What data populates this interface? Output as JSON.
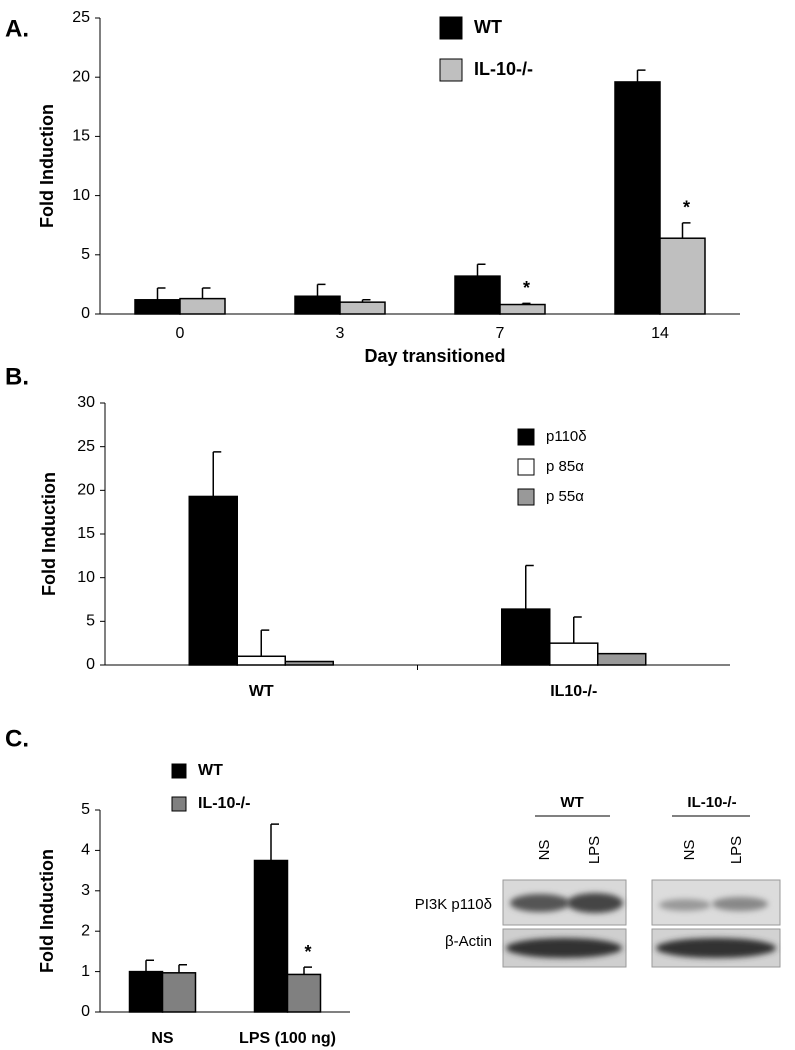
{
  "chart_data": [
    {
      "type": "bar",
      "panel": "A.",
      "y_label": "Fold Induction",
      "x_label": "Day transitioned",
      "categories": [
        "0",
        "3",
        "7",
        "14"
      ],
      "series": [
        {
          "name": "WT",
          "color": "#000000",
          "values": [
            1.2,
            1.5,
            3.2,
            19.6
          ],
          "errors": [
            1.0,
            1.0,
            1.0,
            1.0
          ],
          "markers": [
            null,
            null,
            null,
            null
          ]
        },
        {
          "name": "IL-10-/-",
          "color": "#bfbfbf",
          "values": [
            1.3,
            1.0,
            0.8,
            6.4
          ],
          "errors": [
            0.9,
            0.2,
            0.1,
            1.3
          ],
          "markers": [
            null,
            null,
            "*",
            "*"
          ]
        }
      ],
      "ylim": [
        0,
        25
      ],
      "yticks": [
        0,
        5,
        10,
        15,
        20,
        25
      ],
      "grid": false
    },
    {
      "type": "bar",
      "panel": "B.",
      "y_label": "Fold Induction",
      "categories": [
        "WT",
        "IL10-/-"
      ],
      "series": [
        {
          "name": "p110δ",
          "color": "#000000",
          "values": [
            19.3,
            6.4
          ],
          "errors": [
            5.1,
            5.0
          ]
        },
        {
          "name": "p 85α",
          "color": "#ffffff",
          "values": [
            1.0,
            2.5
          ],
          "errors": [
            3.0,
            3.0
          ]
        },
        {
          "name": "p 55α",
          "color": "#999999",
          "values": [
            0.4,
            1.3
          ],
          "errors": [
            null,
            null
          ]
        }
      ],
      "ylim": [
        0,
        30
      ],
      "yticks": [
        0,
        5,
        10,
        15,
        20,
        25,
        30
      ],
      "grid": false
    },
    {
      "type": "bar",
      "panel": "C.",
      "y_label": "Fold Induction",
      "categories": [
        "NS",
        "LPS (100 ng)"
      ],
      "series": [
        {
          "name": "WT",
          "color": "#000000",
          "values": [
            1.0,
            3.75
          ],
          "errors": [
            0.28,
            0.9
          ],
          "markers": [
            null,
            null
          ]
        },
        {
          "name": "IL-10-/-",
          "color": "#808080",
          "values": [
            0.97,
            0.93
          ],
          "errors": [
            0.2,
            0.18
          ],
          "markers": [
            null,
            "*"
          ]
        }
      ],
      "ylim": [
        0,
        5
      ],
      "yticks": [
        0,
        1,
        2,
        3,
        4,
        5
      ],
      "grid": false
    }
  ],
  "blot": {
    "groups": [
      "WT",
      "IL-10-/-"
    ],
    "lanes": [
      "NS",
      "LPS",
      "NS",
      "LPS"
    ],
    "rows": [
      "PI3K p110δ",
      "β-Actin"
    ]
  }
}
